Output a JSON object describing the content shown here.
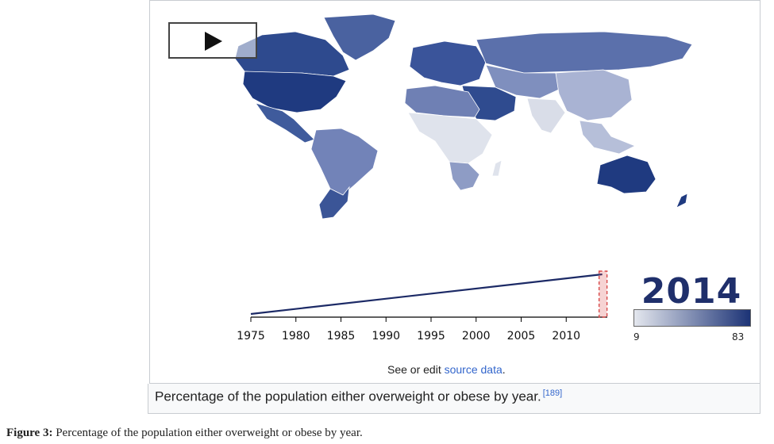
{
  "play_icon": "play-icon",
  "year": "2014",
  "legend": {
    "min": "9",
    "max": "83",
    "color_low": "#e4e7ee",
    "color_high": "#1c3376"
  },
  "timeline": {
    "ticks": [
      "1975",
      "1980",
      "1985",
      "1990",
      "1995",
      "2000",
      "2005",
      "2010"
    ],
    "start_year": 1975,
    "current_year": 2014
  },
  "source_note": {
    "prefix": "See or edit ",
    "link": "source data",
    "suffix": "."
  },
  "caption": {
    "text": "Percentage of the population either overweight or obese by year.",
    "ref": "[189]"
  },
  "figure": {
    "label": "Figure 3:",
    "text": " Percentage of the population either overweight or obese by year."
  },
  "map_colors": {
    "north_america": "#1f3a80",
    "greenland": "#4a62a0",
    "canada": "#2e4a8e",
    "mexico": "#3f5b9c",
    "south_america": "#7283b8",
    "argentina": "#3b5597",
    "europe": "#3a549a",
    "russia": "#5b70ab",
    "middle_east": "#2f4b8f",
    "north_africa": "#6f80b4",
    "central_africa": "#dfe3ec",
    "south_africa": "#8e9cc5",
    "central_asia": "#7f8fbe",
    "china": "#a9b3d3",
    "india": "#d9dde8",
    "southeast_asia": "#b6bfd9",
    "australia": "#1f3a80"
  }
}
